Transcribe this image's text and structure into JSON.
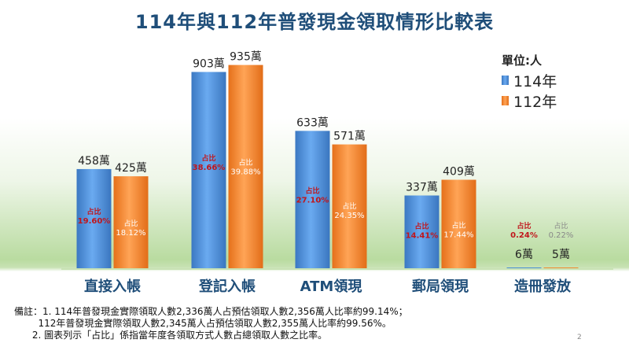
{
  "chart_data": {
    "type": "bar",
    "title": "114年與112年普發現金領取情形比較表",
    "unit_label": "單位:人",
    "categories": [
      "直接入帳",
      "登記入帳",
      "ATM領現",
      "郵局領現",
      "造冊發放"
    ],
    "series": [
      {
        "name": "114年",
        "color": "#4a8fd6",
        "values": [
          458,
          903,
          633,
          337,
          6
        ],
        "value_labels": [
          "458萬",
          "903萬",
          "633萬",
          "337萬",
          "6萬"
        ],
        "share_labels": [
          "19.60%",
          "38.66%",
          "27.10%",
          "14.41%",
          "0.24%"
        ]
      },
      {
        "name": "112年",
        "color": "#f28a2e",
        "values": [
          425,
          935,
          571,
          409,
          5
        ],
        "value_labels": [
          "425萬",
          "935萬",
          "571萬",
          "409萬",
          "5萬"
        ],
        "share_labels": [
          "18.12%",
          "39.88%",
          "24.35%",
          "17.44%",
          "0.22%"
        ]
      }
    ],
    "share_prefix": "占比",
    "ylim": [
      0,
      1000
    ],
    "grid": false,
    "legend_position": "top-right"
  },
  "notes": {
    "line1": "備註：1. 114年普發現金實際領取人數2,336萬人占預估領取人數2,356萬人比率約99.14%；",
    "line2": "        112年普發現金實際領取人數2,345萬人占預估領取人數2,355萬人比率約99.56%。",
    "line3": "      2. 圖表列示「占比」係指當年度各領取方式人數占總領取人數之比率。"
  },
  "page_number": "2"
}
